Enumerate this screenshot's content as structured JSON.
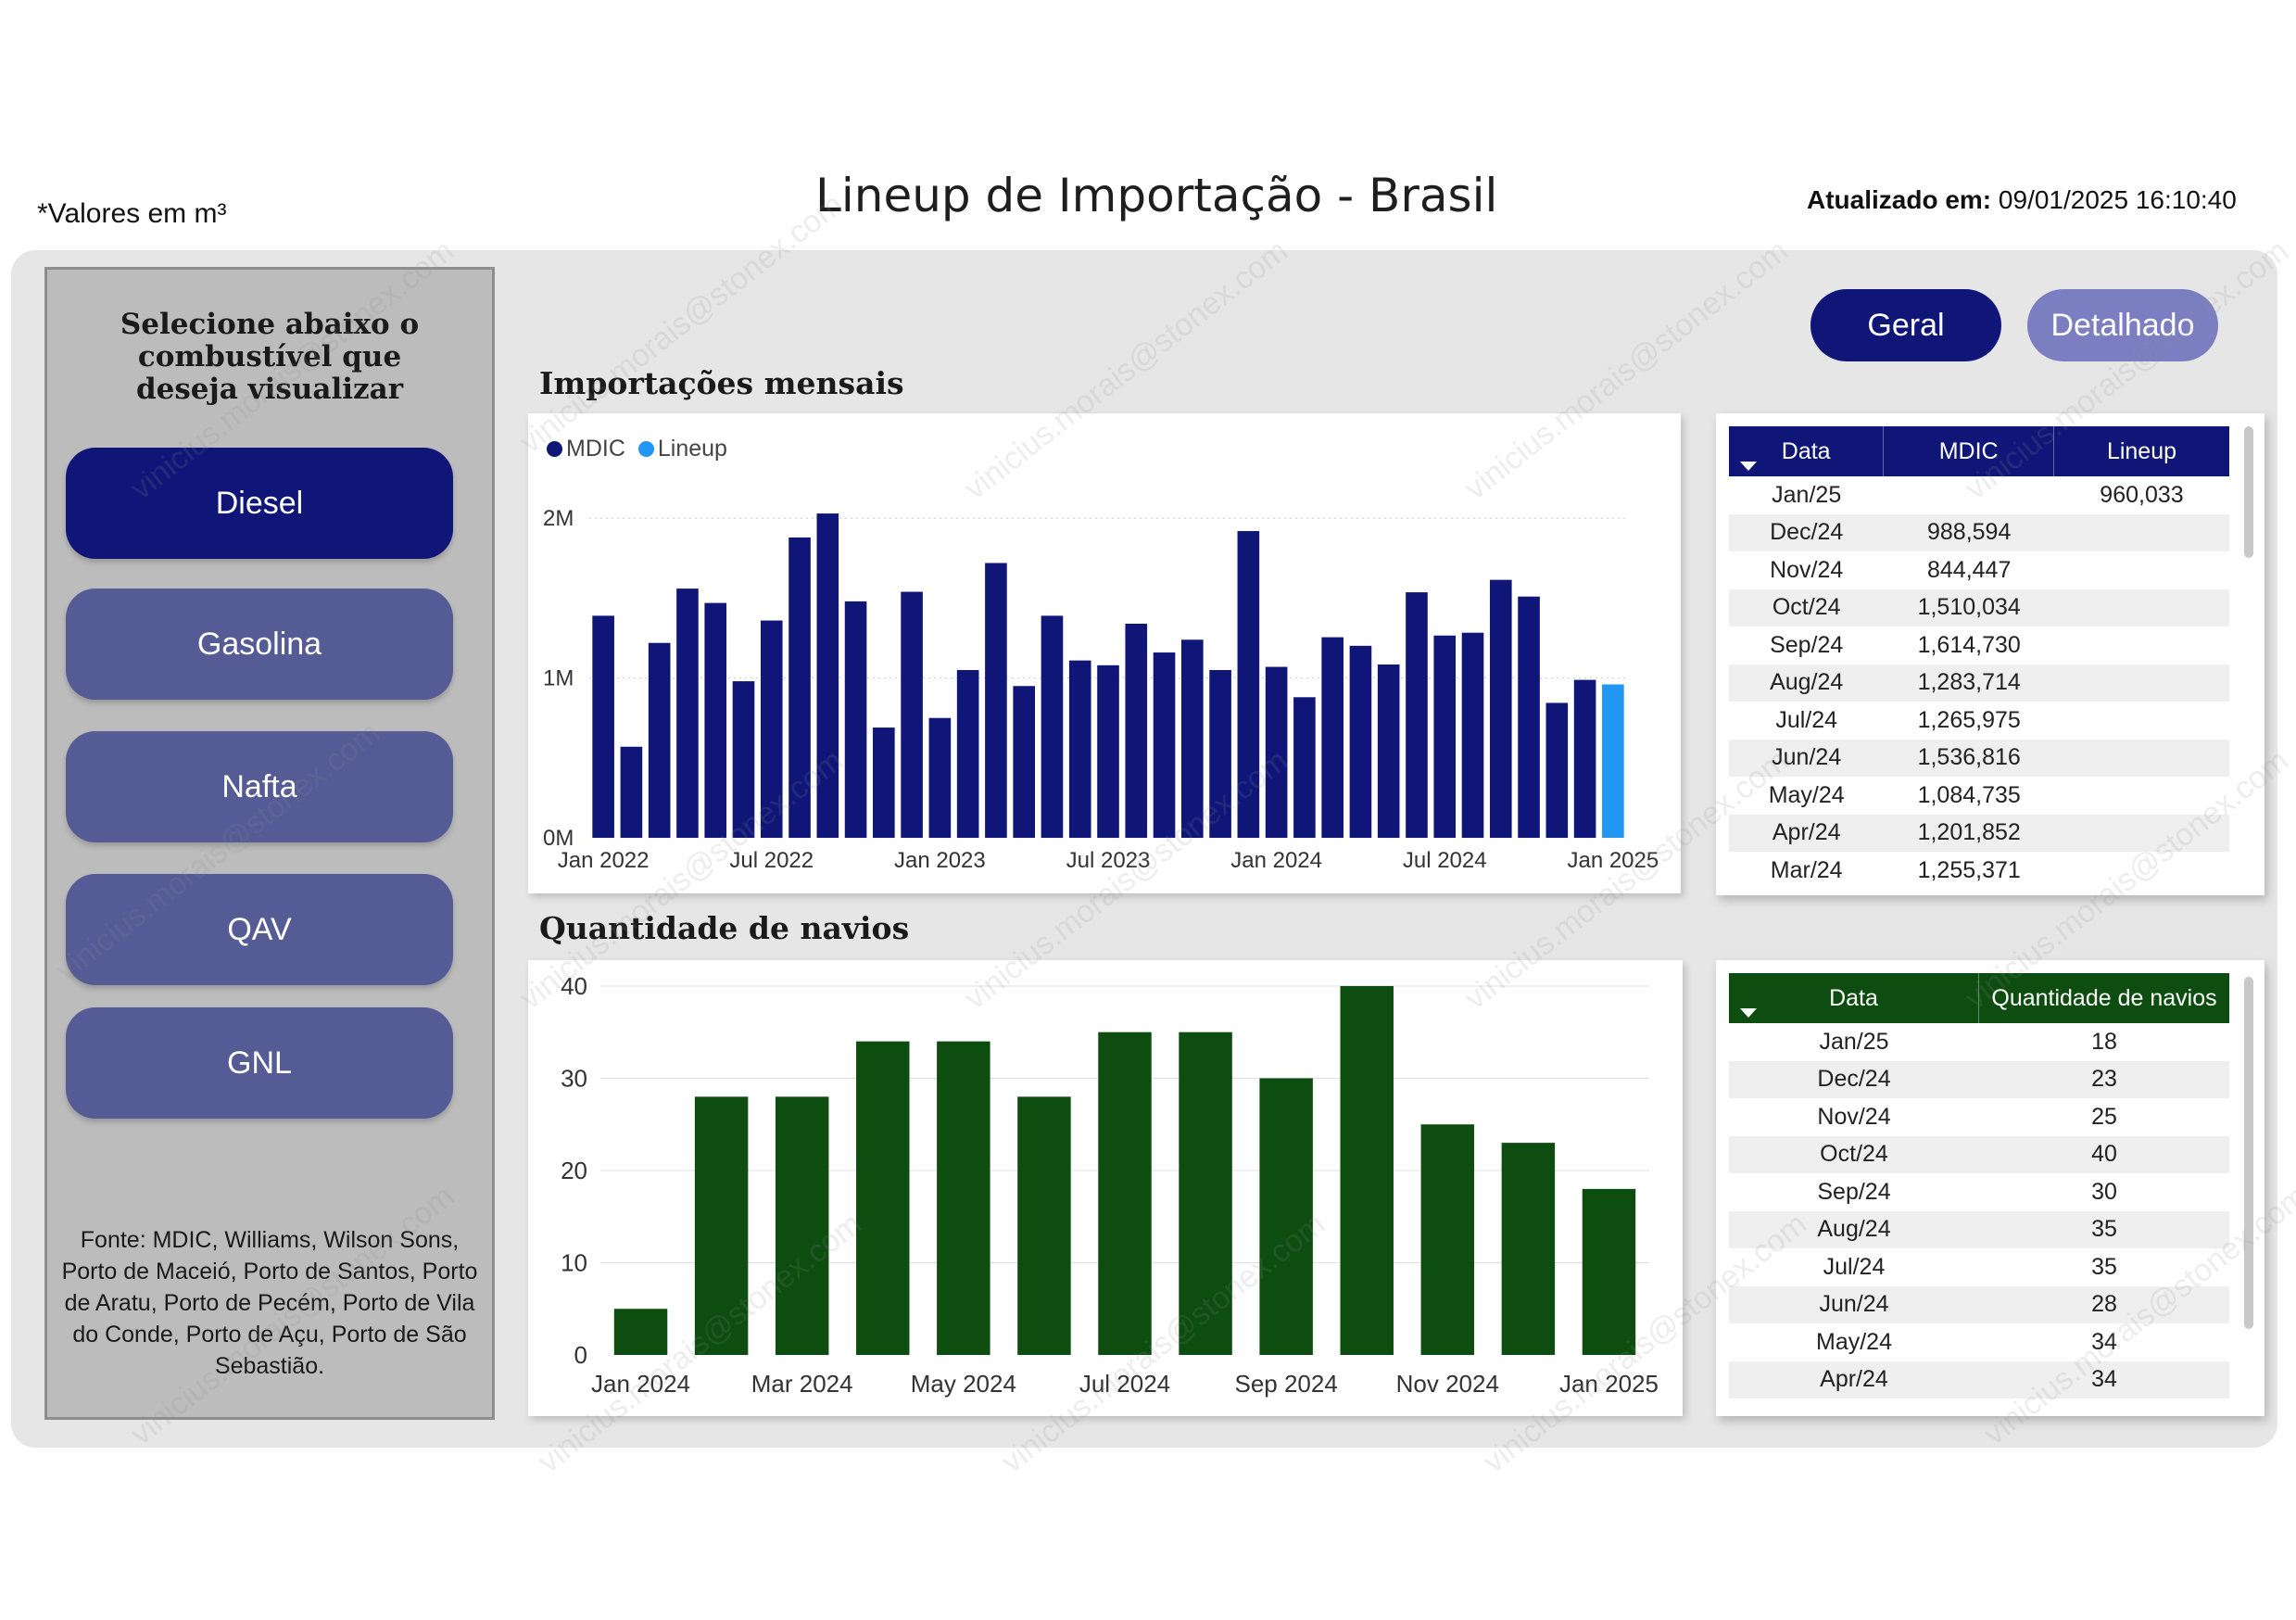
{
  "header": {
    "units_note": "*Valores em m³",
    "title": "Lineup de Importação - Brasil",
    "updated_label": "Atualizado em:",
    "updated_value": "09/01/2025 16:10:40"
  },
  "sidebar": {
    "heading": "Selecione abaixo o combustível que deseja visualizar",
    "buttons": [
      "Diesel",
      "Gasolina",
      "Nafta",
      "QAV",
      "GNL"
    ],
    "active": "Diesel",
    "source": "Fonte: MDIC, Williams, Wilson Sons, Porto de Maceió, Porto de Santos, Porto de Aratu, Porto de Pecém, Porto de Vila do Conde, Porto de Açu, Porto de São Sebastião."
  },
  "view_toggle": {
    "geral": "Geral",
    "detalhado": "Detalhado"
  },
  "monthly": {
    "title": "Importações mensais",
    "legend": [
      {
        "label": "MDIC",
        "color": "#0f1678"
      },
      {
        "label": "Lineup",
        "color": "#2196f3"
      }
    ]
  },
  "ships": {
    "title": "Quantidade de navios"
  },
  "imports_table": {
    "headers": [
      "Data",
      "MDIC",
      "Lineup"
    ],
    "header_color": "#0f1678",
    "rows": [
      [
        "Jan/25",
        "",
        "960,033"
      ],
      [
        "Dec/24",
        "988,594",
        ""
      ],
      [
        "Nov/24",
        "844,447",
        ""
      ],
      [
        "Oct/24",
        "1,510,034",
        ""
      ],
      [
        "Sep/24",
        "1,614,730",
        ""
      ],
      [
        "Aug/24",
        "1,283,714",
        ""
      ],
      [
        "Jul/24",
        "1,265,975",
        ""
      ],
      [
        "Jun/24",
        "1,536,816",
        ""
      ],
      [
        "May/24",
        "1,084,735",
        ""
      ],
      [
        "Apr/24",
        "1,201,852",
        ""
      ],
      [
        "Mar/24",
        "1,255,371",
        ""
      ]
    ]
  },
  "ships_table": {
    "headers": [
      "Data",
      "Quantidade de navios"
    ],
    "header_color": "#0d4d10",
    "rows": [
      [
        "Jan/25",
        "18"
      ],
      [
        "Dec/24",
        "23"
      ],
      [
        "Nov/24",
        "25"
      ],
      [
        "Oct/24",
        "40"
      ],
      [
        "Sep/24",
        "30"
      ],
      [
        "Aug/24",
        "35"
      ],
      [
        "Jul/24",
        "35"
      ],
      [
        "Jun/24",
        "28"
      ],
      [
        "May/24",
        "34"
      ],
      [
        "Apr/24",
        "34"
      ]
    ]
  },
  "watermark": "vinicius.morais@stonex.com",
  "chart_data": [
    {
      "type": "bar",
      "title": "Importações mensais",
      "x": [
        "Jan 2022",
        "Feb 2022",
        "Mar 2022",
        "Apr 2022",
        "May 2022",
        "Jun 2022",
        "Jul 2022",
        "Aug 2022",
        "Sep 2022",
        "Oct 2022",
        "Nov 2022",
        "Dec 2022",
        "Jan 2023",
        "Feb 2023",
        "Mar 2023",
        "Apr 2023",
        "May 2023",
        "Jun 2023",
        "Jul 2023",
        "Aug 2023",
        "Sep 2023",
        "Oct 2023",
        "Nov 2023",
        "Dec 2023",
        "Jan 2024",
        "Feb 2024",
        "Mar 2024",
        "Apr 2024",
        "May 2024",
        "Jun 2024",
        "Jul 2024",
        "Aug 2024",
        "Sep 2024",
        "Oct 2024",
        "Nov 2024",
        "Dec 2024",
        "Jan 2025"
      ],
      "series": [
        {
          "name": "MDIC",
          "color": "#0f1678",
          "values": [
            1390000,
            570000,
            1220000,
            1560000,
            1470000,
            980000,
            1360000,
            1880000,
            2030000,
            1480000,
            690000,
            1540000,
            750000,
            1050000,
            1720000,
            950000,
            1390000,
            1110000,
            1080000,
            1340000,
            1160000,
            1240000,
            1050000,
            1920000,
            1070000,
            880000,
            1255371,
            1201852,
            1084735,
            1536816,
            1265975,
            1283714,
            1614730,
            1510034,
            844447,
            988594,
            null
          ]
        },
        {
          "name": "Lineup",
          "color": "#2196f3",
          "values": [
            null,
            null,
            null,
            null,
            null,
            null,
            null,
            null,
            null,
            null,
            null,
            null,
            null,
            null,
            null,
            null,
            null,
            null,
            null,
            null,
            null,
            null,
            null,
            null,
            null,
            null,
            null,
            null,
            null,
            null,
            null,
            null,
            null,
            null,
            null,
            null,
            960033
          ]
        }
      ],
      "tick_labels_x": [
        "Jan 2022",
        "Jul 2022",
        "Jan 2023",
        "Jul 2023",
        "Jan 2024",
        "Jul 2024",
        "Jan 2025"
      ],
      "tick_labels_y": [
        "0M",
        "1M",
        "2M"
      ],
      "ylim": [
        0,
        2100000
      ],
      "grid": true,
      "legend_position": "top-left"
    },
    {
      "type": "bar",
      "title": "Quantidade de navios",
      "categories": [
        "Jan 2024",
        "Feb 2024",
        "Mar 2024",
        "Apr 2024",
        "May 2024",
        "Jun 2024",
        "Jul 2024",
        "Aug 2024",
        "Sep 2024",
        "Oct 2024",
        "Nov 2024",
        "Dec 2024",
        "Jan 2025"
      ],
      "values": [
        5,
        28,
        28,
        34,
        34,
        28,
        35,
        35,
        30,
        40,
        25,
        23,
        18
      ],
      "color": "#0d4d10",
      "tick_labels_x": [
        "Jan 2024",
        "Mar 2024",
        "May 2024",
        "Jul 2024",
        "Sep 2024",
        "Nov 2024",
        "Jan 2025"
      ],
      "tick_labels_y": [
        "0",
        "10",
        "20",
        "30",
        "40"
      ],
      "ylim": [
        0,
        41
      ],
      "grid": true
    }
  ]
}
